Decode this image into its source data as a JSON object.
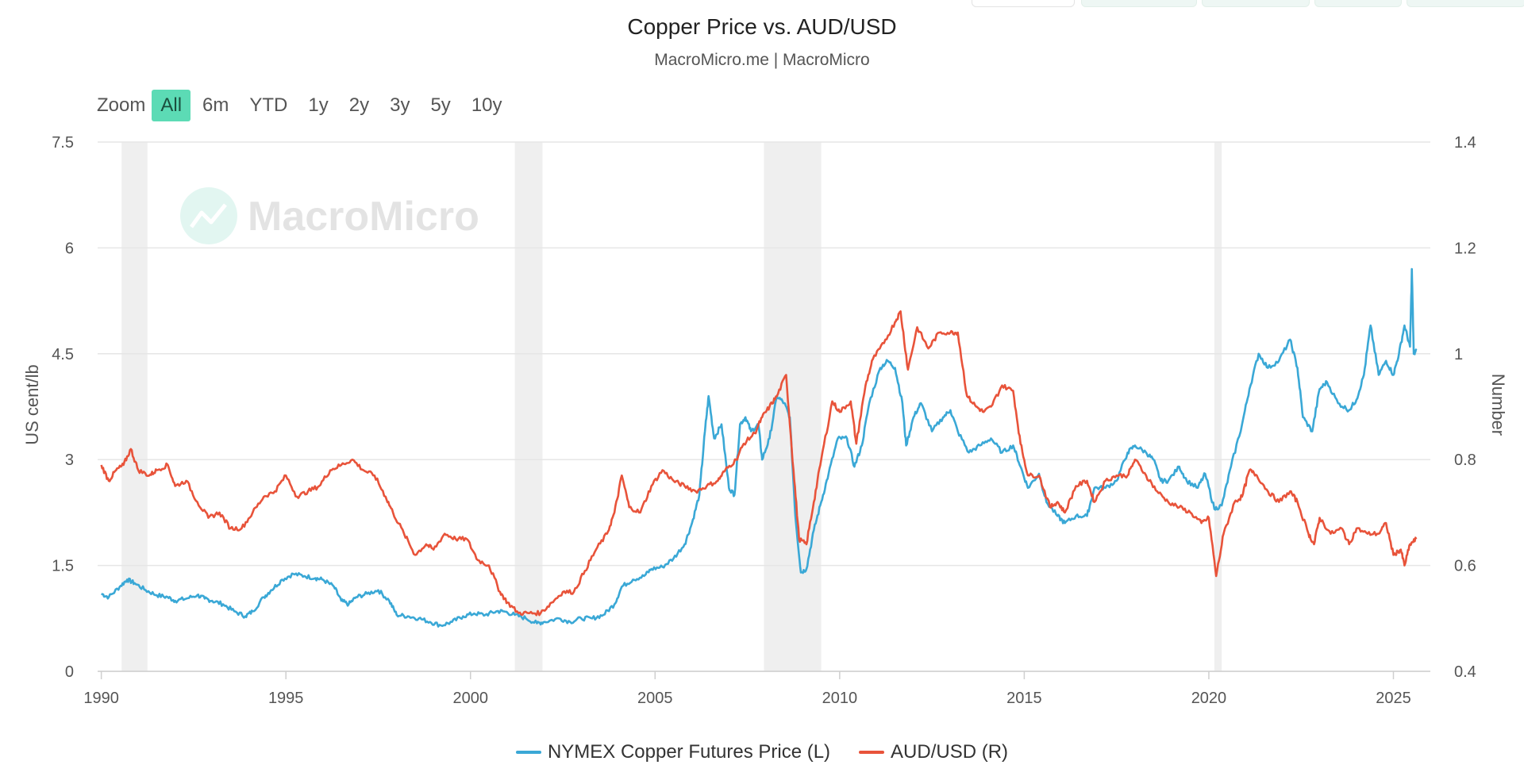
{
  "colors": {
    "copper": "#3aa8d6",
    "aud": "#e8533a",
    "recession": "#efefef",
    "grid": "#e6e6e6",
    "zoom_active": "#5cdbb5"
  },
  "zoom": {
    "label": "Zoom",
    "buttons": [
      "All",
      "6m",
      "YTD",
      "1y",
      "2y",
      "3y",
      "5y",
      "10y"
    ],
    "active": "All"
  },
  "watermark": {
    "text": "MacroMicro",
    "icon": "line-chart-icon"
  },
  "chart_data": {
    "type": "line",
    "title": "Copper Price vs. AUD/USD",
    "subtitle": "MacroMicro.me | MacroMicro",
    "xlabel": "",
    "ylabel_left": "US cent/lb",
    "ylabel_right": "Number",
    "xlim": [
      1989.9,
      2026.0
    ],
    "ylim_left": [
      0,
      7.5
    ],
    "ylim_right": [
      0.4,
      1.4
    ],
    "x_ticks": [
      "1990",
      "1995",
      "2000",
      "2005",
      "2010",
      "2015",
      "2020",
      "2025"
    ],
    "y_ticks_left": [
      "0",
      "1.5",
      "3",
      "4.5",
      "6",
      "7.5"
    ],
    "y_ticks_right": [
      "0.4",
      "0.6",
      "0.8",
      "1",
      "1.2",
      "1.4"
    ],
    "recessions": [
      [
        1990.55,
        1991.25
      ],
      [
        2001.2,
        2001.95
      ],
      [
        2007.95,
        2009.5
      ],
      [
        2020.15,
        2020.35
      ]
    ],
    "legend_position": "bottom-center",
    "series": [
      {
        "name": "NYMEX Copper Futures Price (L)",
        "axis": "left",
        "color": "#3aa8d6",
        "points": [
          [
            1990.0,
            1.1
          ],
          [
            1990.2,
            1.05
          ],
          [
            1990.5,
            1.2
          ],
          [
            1990.7,
            1.3
          ],
          [
            1990.9,
            1.25
          ],
          [
            1991.2,
            1.15
          ],
          [
            1991.5,
            1.08
          ],
          [
            1991.8,
            1.05
          ],
          [
            1992.0,
            1.0
          ],
          [
            1992.3,
            1.03
          ],
          [
            1992.6,
            1.08
          ],
          [
            1992.8,
            1.03
          ],
          [
            1993.0,
            1.0
          ],
          [
            1993.3,
            0.95
          ],
          [
            1993.6,
            0.85
          ],
          [
            1993.9,
            0.78
          ],
          [
            1994.1,
            0.85
          ],
          [
            1994.4,
            1.05
          ],
          [
            1994.6,
            1.15
          ],
          [
            1994.9,
            1.3
          ],
          [
            1995.2,
            1.38
          ],
          [
            1995.5,
            1.35
          ],
          [
            1995.8,
            1.32
          ],
          [
            1996.0,
            1.3
          ],
          [
            1996.3,
            1.2
          ],
          [
            1996.5,
            1.0
          ],
          [
            1996.7,
            0.95
          ],
          [
            1996.9,
            1.05
          ],
          [
            1997.2,
            1.1
          ],
          [
            1997.5,
            1.15
          ],
          [
            1997.8,
            1.0
          ],
          [
            1998.0,
            0.8
          ],
          [
            1998.3,
            0.78
          ],
          [
            1998.6,
            0.75
          ],
          [
            1998.9,
            0.7
          ],
          [
            1999.2,
            0.65
          ],
          [
            1999.5,
            0.7
          ],
          [
            1999.8,
            0.78
          ],
          [
            2000.1,
            0.82
          ],
          [
            2000.4,
            0.8
          ],
          [
            2000.7,
            0.85
          ],
          [
            2000.9,
            0.85
          ],
          [
            2001.2,
            0.8
          ],
          [
            2001.5,
            0.75
          ],
          [
            2001.8,
            0.68
          ],
          [
            2002.0,
            0.7
          ],
          [
            2002.4,
            0.75
          ],
          [
            2002.7,
            0.7
          ],
          [
            2003.0,
            0.75
          ],
          [
            2003.3,
            0.75
          ],
          [
            2003.6,
            0.8
          ],
          [
            2003.9,
            0.95
          ],
          [
            2004.1,
            1.2
          ],
          [
            2004.4,
            1.3
          ],
          [
            2004.7,
            1.35
          ],
          [
            2004.9,
            1.45
          ],
          [
            2005.2,
            1.48
          ],
          [
            2005.5,
            1.6
          ],
          [
            2005.8,
            1.8
          ],
          [
            2006.0,
            2.1
          ],
          [
            2006.2,
            2.5
          ],
          [
            2006.35,
            3.4
          ],
          [
            2006.45,
            3.9
          ],
          [
            2006.6,
            3.3
          ],
          [
            2006.8,
            3.5
          ],
          [
            2007.0,
            2.6
          ],
          [
            2007.15,
            2.5
          ],
          [
            2007.3,
            3.5
          ],
          [
            2007.45,
            3.6
          ],
          [
            2007.6,
            3.4
          ],
          [
            2007.8,
            3.5
          ],
          [
            2007.9,
            3.0
          ],
          [
            2008.1,
            3.3
          ],
          [
            2008.3,
            3.9
          ],
          [
            2008.5,
            3.8
          ],
          [
            2008.65,
            3.6
          ],
          [
            2008.8,
            2.2
          ],
          [
            2008.95,
            1.4
          ],
          [
            2009.1,
            1.45
          ],
          [
            2009.3,
            2.0
          ],
          [
            2009.5,
            2.4
          ],
          [
            2009.7,
            2.8
          ],
          [
            2009.95,
            3.3
          ],
          [
            2010.2,
            3.3
          ],
          [
            2010.4,
            2.9
          ],
          [
            2010.6,
            3.2
          ],
          [
            2010.8,
            3.8
          ],
          [
            2011.1,
            4.3
          ],
          [
            2011.3,
            4.4
          ],
          [
            2011.5,
            4.3
          ],
          [
            2011.7,
            3.8
          ],
          [
            2011.8,
            3.2
          ],
          [
            2012.0,
            3.6
          ],
          [
            2012.2,
            3.8
          ],
          [
            2012.5,
            3.4
          ],
          [
            2012.8,
            3.6
          ],
          [
            2013.0,
            3.7
          ],
          [
            2013.2,
            3.4
          ],
          [
            2013.5,
            3.1
          ],
          [
            2013.8,
            3.2
          ],
          [
            2014.1,
            3.3
          ],
          [
            2014.4,
            3.1
          ],
          [
            2014.7,
            3.2
          ],
          [
            2014.9,
            2.9
          ],
          [
            2015.1,
            2.6
          ],
          [
            2015.4,
            2.8
          ],
          [
            2015.6,
            2.4
          ],
          [
            2015.9,
            2.2
          ],
          [
            2016.1,
            2.1
          ],
          [
            2016.4,
            2.2
          ],
          [
            2016.7,
            2.2
          ],
          [
            2016.9,
            2.6
          ],
          [
            2017.2,
            2.6
          ],
          [
            2017.5,
            2.7
          ],
          [
            2017.8,
            3.1
          ],
          [
            2018.0,
            3.2
          ],
          [
            2018.3,
            3.1
          ],
          [
            2018.5,
            3.0
          ],
          [
            2018.7,
            2.7
          ],
          [
            2018.9,
            2.7
          ],
          [
            2019.2,
            2.9
          ],
          [
            2019.4,
            2.7
          ],
          [
            2019.7,
            2.6
          ],
          [
            2019.9,
            2.8
          ],
          [
            2020.15,
            2.3
          ],
          [
            2020.35,
            2.35
          ],
          [
            2020.6,
            2.9
          ],
          [
            2020.9,
            3.5
          ],
          [
            2021.1,
            4.0
          ],
          [
            2021.35,
            4.5
          ],
          [
            2021.6,
            4.3
          ],
          [
            2021.9,
            4.4
          ],
          [
            2022.2,
            4.7
          ],
          [
            2022.4,
            4.3
          ],
          [
            2022.55,
            3.6
          ],
          [
            2022.8,
            3.4
          ],
          [
            2023.0,
            4.0
          ],
          [
            2023.2,
            4.1
          ],
          [
            2023.5,
            3.8
          ],
          [
            2023.8,
            3.7
          ],
          [
            2024.0,
            3.85
          ],
          [
            2024.2,
            4.2
          ],
          [
            2024.38,
            4.9
          ],
          [
            2024.6,
            4.2
          ],
          [
            2024.8,
            4.4
          ],
          [
            2025.0,
            4.2
          ],
          [
            2025.15,
            4.5
          ],
          [
            2025.3,
            4.9
          ],
          [
            2025.45,
            4.6
          ],
          [
            2025.5,
            5.7
          ],
          [
            2025.55,
            4.5
          ],
          [
            2025.62,
            4.55
          ]
        ]
      },
      {
        "name": "AUD/USD (R)",
        "axis": "right",
        "color": "#e8533a",
        "points": [
          [
            1990.0,
            0.79
          ],
          [
            1990.2,
            0.76
          ],
          [
            1990.4,
            0.78
          ],
          [
            1990.6,
            0.79
          ],
          [
            1990.8,
            0.82
          ],
          [
            1991.0,
            0.78
          ],
          [
            1991.3,
            0.77
          ],
          [
            1991.5,
            0.78
          ],
          [
            1991.8,
            0.79
          ],
          [
            1992.0,
            0.75
          ],
          [
            1992.3,
            0.76
          ],
          [
            1992.6,
            0.72
          ],
          [
            1992.9,
            0.69
          ],
          [
            1993.2,
            0.7
          ],
          [
            1993.5,
            0.67
          ],
          [
            1993.8,
            0.67
          ],
          [
            1994.1,
            0.7
          ],
          [
            1994.4,
            0.73
          ],
          [
            1994.7,
            0.74
          ],
          [
            1995.0,
            0.77
          ],
          [
            1995.3,
            0.73
          ],
          [
            1995.6,
            0.74
          ],
          [
            1995.9,
            0.75
          ],
          [
            1996.2,
            0.78
          ],
          [
            1996.5,
            0.79
          ],
          [
            1996.8,
            0.8
          ],
          [
            1997.1,
            0.78
          ],
          [
            1997.4,
            0.77
          ],
          [
            1997.7,
            0.73
          ],
          [
            1997.9,
            0.7
          ],
          [
            1998.2,
            0.66
          ],
          [
            1998.5,
            0.62
          ],
          [
            1998.8,
            0.64
          ],
          [
            1999.0,
            0.63
          ],
          [
            1999.3,
            0.66
          ],
          [
            1999.6,
            0.65
          ],
          [
            1999.9,
            0.65
          ],
          [
            2000.2,
            0.61
          ],
          [
            2000.5,
            0.6
          ],
          [
            2000.8,
            0.55
          ],
          [
            2001.0,
            0.53
          ],
          [
            2001.3,
            0.51
          ],
          [
            2001.6,
            0.51
          ],
          [
            2001.9,
            0.51
          ],
          [
            2002.2,
            0.53
          ],
          [
            2002.5,
            0.55
          ],
          [
            2002.8,
            0.55
          ],
          [
            2003.1,
            0.59
          ],
          [
            2003.4,
            0.63
          ],
          [
            2003.7,
            0.66
          ],
          [
            2003.9,
            0.7
          ],
          [
            2004.1,
            0.77
          ],
          [
            2004.3,
            0.71
          ],
          [
            2004.6,
            0.7
          ],
          [
            2004.9,
            0.75
          ],
          [
            2005.2,
            0.78
          ],
          [
            2005.5,
            0.76
          ],
          [
            2005.8,
            0.75
          ],
          [
            2006.1,
            0.74
          ],
          [
            2006.4,
            0.75
          ],
          [
            2006.7,
            0.76
          ],
          [
            2006.9,
            0.78
          ],
          [
            2007.2,
            0.8
          ],
          [
            2007.4,
            0.83
          ],
          [
            2007.7,
            0.85
          ],
          [
            2007.9,
            0.88
          ],
          [
            2008.1,
            0.9
          ],
          [
            2008.3,
            0.92
          ],
          [
            2008.55,
            0.96
          ],
          [
            2008.75,
            0.78
          ],
          [
            2008.9,
            0.65
          ],
          [
            2009.1,
            0.64
          ],
          [
            2009.3,
            0.72
          ],
          [
            2009.5,
            0.8
          ],
          [
            2009.8,
            0.91
          ],
          [
            2010.0,
            0.89
          ],
          [
            2010.3,
            0.91
          ],
          [
            2010.45,
            0.83
          ],
          [
            2010.7,
            0.94
          ],
          [
            2010.9,
            0.99
          ],
          [
            2011.2,
            1.02
          ],
          [
            2011.5,
            1.06
          ],
          [
            2011.65,
            1.08
          ],
          [
            2011.85,
            0.97
          ],
          [
            2012.1,
            1.05
          ],
          [
            2012.4,
            1.01
          ],
          [
            2012.7,
            1.04
          ],
          [
            2013.0,
            1.04
          ],
          [
            2013.2,
            1.04
          ],
          [
            2013.45,
            0.92
          ],
          [
            2013.7,
            0.9
          ],
          [
            2013.9,
            0.89
          ],
          [
            2014.1,
            0.9
          ],
          [
            2014.4,
            0.94
          ],
          [
            2014.7,
            0.93
          ],
          [
            2014.9,
            0.83
          ],
          [
            2015.1,
            0.77
          ],
          [
            2015.4,
            0.77
          ],
          [
            2015.7,
            0.71
          ],
          [
            2015.9,
            0.72
          ],
          [
            2016.1,
            0.7
          ],
          [
            2016.4,
            0.75
          ],
          [
            2016.7,
            0.76
          ],
          [
            2016.9,
            0.72
          ],
          [
            2017.2,
            0.76
          ],
          [
            2017.5,
            0.77
          ],
          [
            2017.8,
            0.77
          ],
          [
            2018.0,
            0.8
          ],
          [
            2018.3,
            0.77
          ],
          [
            2018.6,
            0.74
          ],
          [
            2018.9,
            0.72
          ],
          [
            2019.2,
            0.71
          ],
          [
            2019.5,
            0.7
          ],
          [
            2019.8,
            0.68
          ],
          [
            2020.0,
            0.69
          ],
          [
            2020.2,
            0.58
          ],
          [
            2020.4,
            0.66
          ],
          [
            2020.7,
            0.72
          ],
          [
            2020.9,
            0.73
          ],
          [
            2021.1,
            0.78
          ],
          [
            2021.3,
            0.77
          ],
          [
            2021.6,
            0.74
          ],
          [
            2021.9,
            0.72
          ],
          [
            2022.2,
            0.74
          ],
          [
            2022.4,
            0.72
          ],
          [
            2022.7,
            0.66
          ],
          [
            2022.85,
            0.64
          ],
          [
            2023.0,
            0.69
          ],
          [
            2023.3,
            0.66
          ],
          [
            2023.6,
            0.67
          ],
          [
            2023.8,
            0.64
          ],
          [
            2024.0,
            0.67
          ],
          [
            2024.3,
            0.66
          ],
          [
            2024.6,
            0.66
          ],
          [
            2024.8,
            0.68
          ],
          [
            2025.0,
            0.62
          ],
          [
            2025.2,
            0.63
          ],
          [
            2025.3,
            0.6
          ],
          [
            2025.45,
            0.64
          ],
          [
            2025.62,
            0.65
          ]
        ]
      }
    ]
  }
}
